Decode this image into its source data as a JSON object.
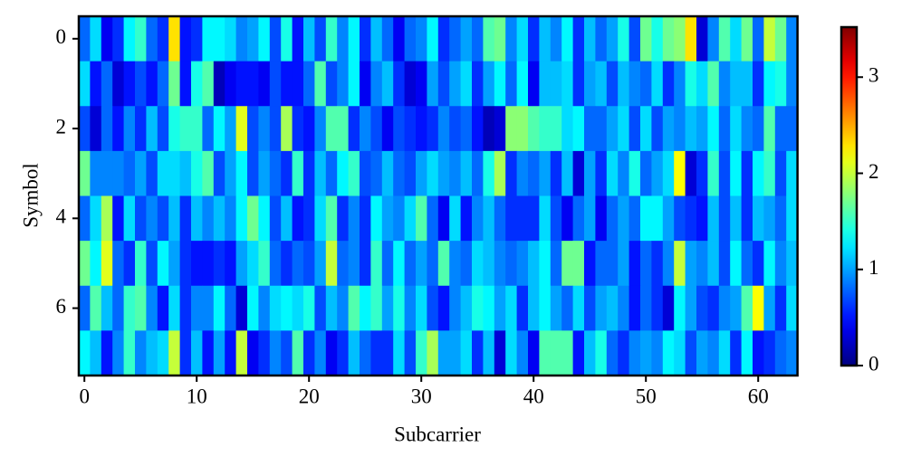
{
  "chart_data": {
    "type": "heatmap",
    "xlabel": "Subcarrier",
    "ylabel": "Symbol",
    "colormap": "jet",
    "x": [
      0,
      1,
      2,
      3,
      4,
      5,
      6,
      7,
      8,
      9,
      10,
      11,
      12,
      13,
      14,
      15,
      16,
      17,
      18,
      19,
      20,
      21,
      22,
      23,
      24,
      25,
      26,
      27,
      28,
      29,
      30,
      31,
      32,
      33,
      34,
      35,
      36,
      37,
      38,
      39,
      40,
      41,
      42,
      43,
      44,
      45,
      46,
      47,
      48,
      49,
      50,
      51,
      52,
      53,
      54,
      55,
      56,
      57,
      58,
      59,
      60,
      61,
      62,
      63
    ],
    "y": [
      0,
      1,
      2,
      3,
      4,
      5,
      6,
      7
    ],
    "xlim": [
      -0.5,
      63.5
    ],
    "xticks": [
      0,
      10,
      20,
      30,
      40,
      50,
      60
    ],
    "ylim": [
      7.5,
      -0.5
    ],
    "yticks": [
      0,
      2,
      4,
      6
    ],
    "clim": [
      0,
      3.52
    ],
    "cticks": [
      0,
      1,
      2,
      3
    ],
    "values": [
      [
        0.8,
        1.2,
        0.4,
        0.6,
        1.3,
        1.5,
        0.8,
        0.6,
        2.3,
        0.5,
        0.6,
        1.3,
        1.3,
        1.2,
        0.9,
        1.0,
        1.3,
        0.7,
        1.4,
        0.5,
        1.1,
        0.7,
        1.5,
        0.9,
        1.3,
        0.6,
        1.1,
        0.8,
        0.4,
        0.8,
        0.9,
        1.3,
        0.6,
        0.8,
        1.0,
        0.8,
        1.6,
        1.7,
        0.9,
        1.2,
        0.6,
        1.1,
        0.9,
        1.3,
        0.6,
        1.1,
        0.8,
        1.0,
        1.4,
        0.7,
        1.7,
        1.4,
        1.7,
        1.8,
        2.3,
        0.3,
        0.9,
        1.6,
        1.2,
        1.7,
        0.8,
        2.0,
        1.7,
        0.9
      ],
      [
        1.2,
        0.5,
        0.8,
        0.3,
        0.5,
        0.7,
        0.5,
        0.8,
        1.7,
        0.5,
        1.4,
        1.6,
        0.2,
        0.4,
        0.5,
        0.5,
        0.4,
        0.7,
        0.5,
        0.5,
        0.8,
        1.6,
        0.7,
        0.9,
        1.3,
        0.4,
        0.9,
        1.1,
        0.6,
        0.3,
        0.4,
        1.0,
        0.7,
        1.0,
        1.2,
        0.6,
        1.0,
        1.3,
        0.8,
        1.3,
        0.4,
        1.1,
        1.1,
        1.2,
        0.6,
        1.0,
        1.1,
        0.7,
        1.1,
        0.9,
        0.8,
        1.2,
        0.6,
        0.9,
        1.4,
        1.2,
        1.6,
        0.9,
        1.1,
        1.1,
        0.6,
        1.3,
        1.4,
        0.9
      ],
      [
        0.7,
        0.3,
        0.8,
        0.5,
        0.9,
        0.6,
        1.1,
        0.7,
        1.4,
        1.5,
        1.5,
        0.8,
        1.3,
        1.0,
        2.1,
        0.7,
        0.9,
        0.7,
        1.9,
        0.6,
        0.5,
        0.9,
        1.6,
        1.6,
        0.6,
        0.9,
        0.7,
        0.4,
        0.7,
        0.6,
        0.5,
        0.6,
        0.9,
        0.7,
        0.8,
        0.5,
        0.2,
        0.3,
        1.8,
        1.8,
        1.6,
        1.5,
        1.5,
        1.2,
        1.3,
        0.8,
        0.8,
        1.0,
        1.2,
        0.7,
        1.2,
        0.7,
        1.0,
        0.9,
        1.1,
        1.0,
        1.3,
        0.8,
        1.2,
        0.9,
        0.8,
        1.6,
        0.8,
        0.8
      ],
      [
        1.7,
        0.9,
        0.9,
        0.9,
        0.8,
        1.0,
        0.7,
        1.2,
        1.2,
        1.1,
        1.4,
        1.6,
        0.7,
        1.0,
        1.3,
        0.7,
        1.0,
        0.8,
        0.6,
        1.5,
        0.6,
        1.1,
        0.8,
        1.3,
        1.5,
        0.7,
        0.8,
        1.1,
        0.8,
        0.7,
        1.0,
        1.2,
        1.0,
        0.9,
        1.1,
        0.8,
        1.4,
        1.9,
        0.6,
        0.9,
        0.8,
        1.0,
        0.6,
        1.1,
        0.3,
        1.0,
        0.6,
        1.2,
        0.9,
        1.4,
        0.8,
        1.0,
        1.2,
        2.2,
        0.3,
        0.6,
        1.5,
        0.7,
        1.3,
        0.6,
        1.3,
        1.5,
        0.7,
        1.2
      ],
      [
        0.8,
        1.2,
        1.9,
        0.5,
        1.2,
        0.7,
        0.9,
        0.7,
        1.1,
        0.6,
        1.1,
        0.9,
        1.1,
        0.9,
        1.3,
        1.7,
        1.3,
        0.7,
        1.1,
        0.5,
        0.6,
        1.2,
        1.6,
        0.6,
        0.9,
        0.6,
        1.3,
        1.0,
        0.9,
        1.2,
        1.6,
        0.8,
        0.4,
        1.2,
        0.5,
        0.9,
        1.1,
        0.8,
        0.6,
        0.6,
        0.6,
        1.2,
        0.7,
        0.4,
        0.8,
        1.0,
        0.4,
        0.8,
        1.0,
        0.8,
        1.3,
        1.3,
        1.0,
        0.7,
        0.6,
        0.5,
        1.1,
        0.7,
        1.1,
        0.6,
        1.1,
        1.0,
        0.8,
        1.2
      ],
      [
        1.7,
        1.3,
        2.1,
        0.8,
        0.6,
        1.5,
        0.7,
        1.3,
        1.0,
        0.6,
        0.5,
        0.5,
        0.6,
        0.5,
        1.0,
        1.2,
        1.5,
        0.8,
        0.6,
        0.8,
        0.7,
        1.0,
        2.0,
        0.8,
        0.9,
        0.6,
        1.5,
        0.8,
        1.3,
        0.8,
        1.0,
        0.8,
        1.6,
        0.9,
        0.8,
        1.2,
        1.1,
        0.9,
        0.8,
        0.9,
        1.1,
        1.3,
        0.8,
        1.7,
        1.7,
        0.5,
        0.8,
        0.8,
        1.0,
        0.5,
        0.8,
        0.6,
        0.9,
        2.0,
        1.0,
        0.9,
        1.1,
        0.7,
        1.3,
        0.8,
        0.6,
        1.3,
        0.9,
        1.1
      ],
      [
        0.8,
        1.6,
        1.1,
        0.8,
        1.5,
        1.6,
        0.9,
        0.5,
        1.2,
        0.6,
        0.9,
        0.9,
        1.3,
        0.8,
        0.3,
        1.3,
        0.9,
        1.2,
        1.3,
        1.2,
        1.4,
        0.7,
        1.1,
        0.9,
        1.6,
        1.3,
        1.5,
        1.0,
        1.4,
        0.9,
        1.2,
        0.7,
        0.5,
        0.9,
        1.1,
        1.4,
        1.3,
        1.0,
        1.2,
        0.6,
        1.1,
        1.3,
        1.0,
        0.8,
        1.2,
        0.7,
        1.0,
        1.1,
        0.9,
        0.5,
        0.8,
        0.6,
        0.3,
        1.3,
        1.0,
        0.7,
        0.6,
        0.9,
        1.0,
        1.6,
        2.2,
        1.0,
        0.6,
        1.2
      ],
      [
        1.3,
        1.1,
        0.5,
        0.9,
        1.5,
        0.9,
        1.1,
        1.2,
        2.0,
        0.6,
        1.1,
        0.5,
        1.0,
        0.5,
        2.0,
        0.4,
        0.6,
        0.9,
        0.7,
        1.6,
        0.6,
        0.9,
        0.4,
        0.6,
        1.1,
        0.8,
        0.6,
        0.6,
        1.2,
        0.7,
        1.5,
        1.9,
        1.0,
        1.0,
        1.2,
        0.6,
        1.1,
        0.3,
        1.2,
        0.9,
        0.4,
        1.6,
        1.6,
        1.6,
        0.5,
        1.1,
        1.4,
        0.8,
        0.6,
        0.9,
        1.0,
        0.9,
        1.3,
        1.2,
        0.7,
        1.0,
        0.9,
        1.2,
        0.6,
        1.3,
        0.5,
        0.6,
        0.8,
        0.9
      ]
    ]
  }
}
